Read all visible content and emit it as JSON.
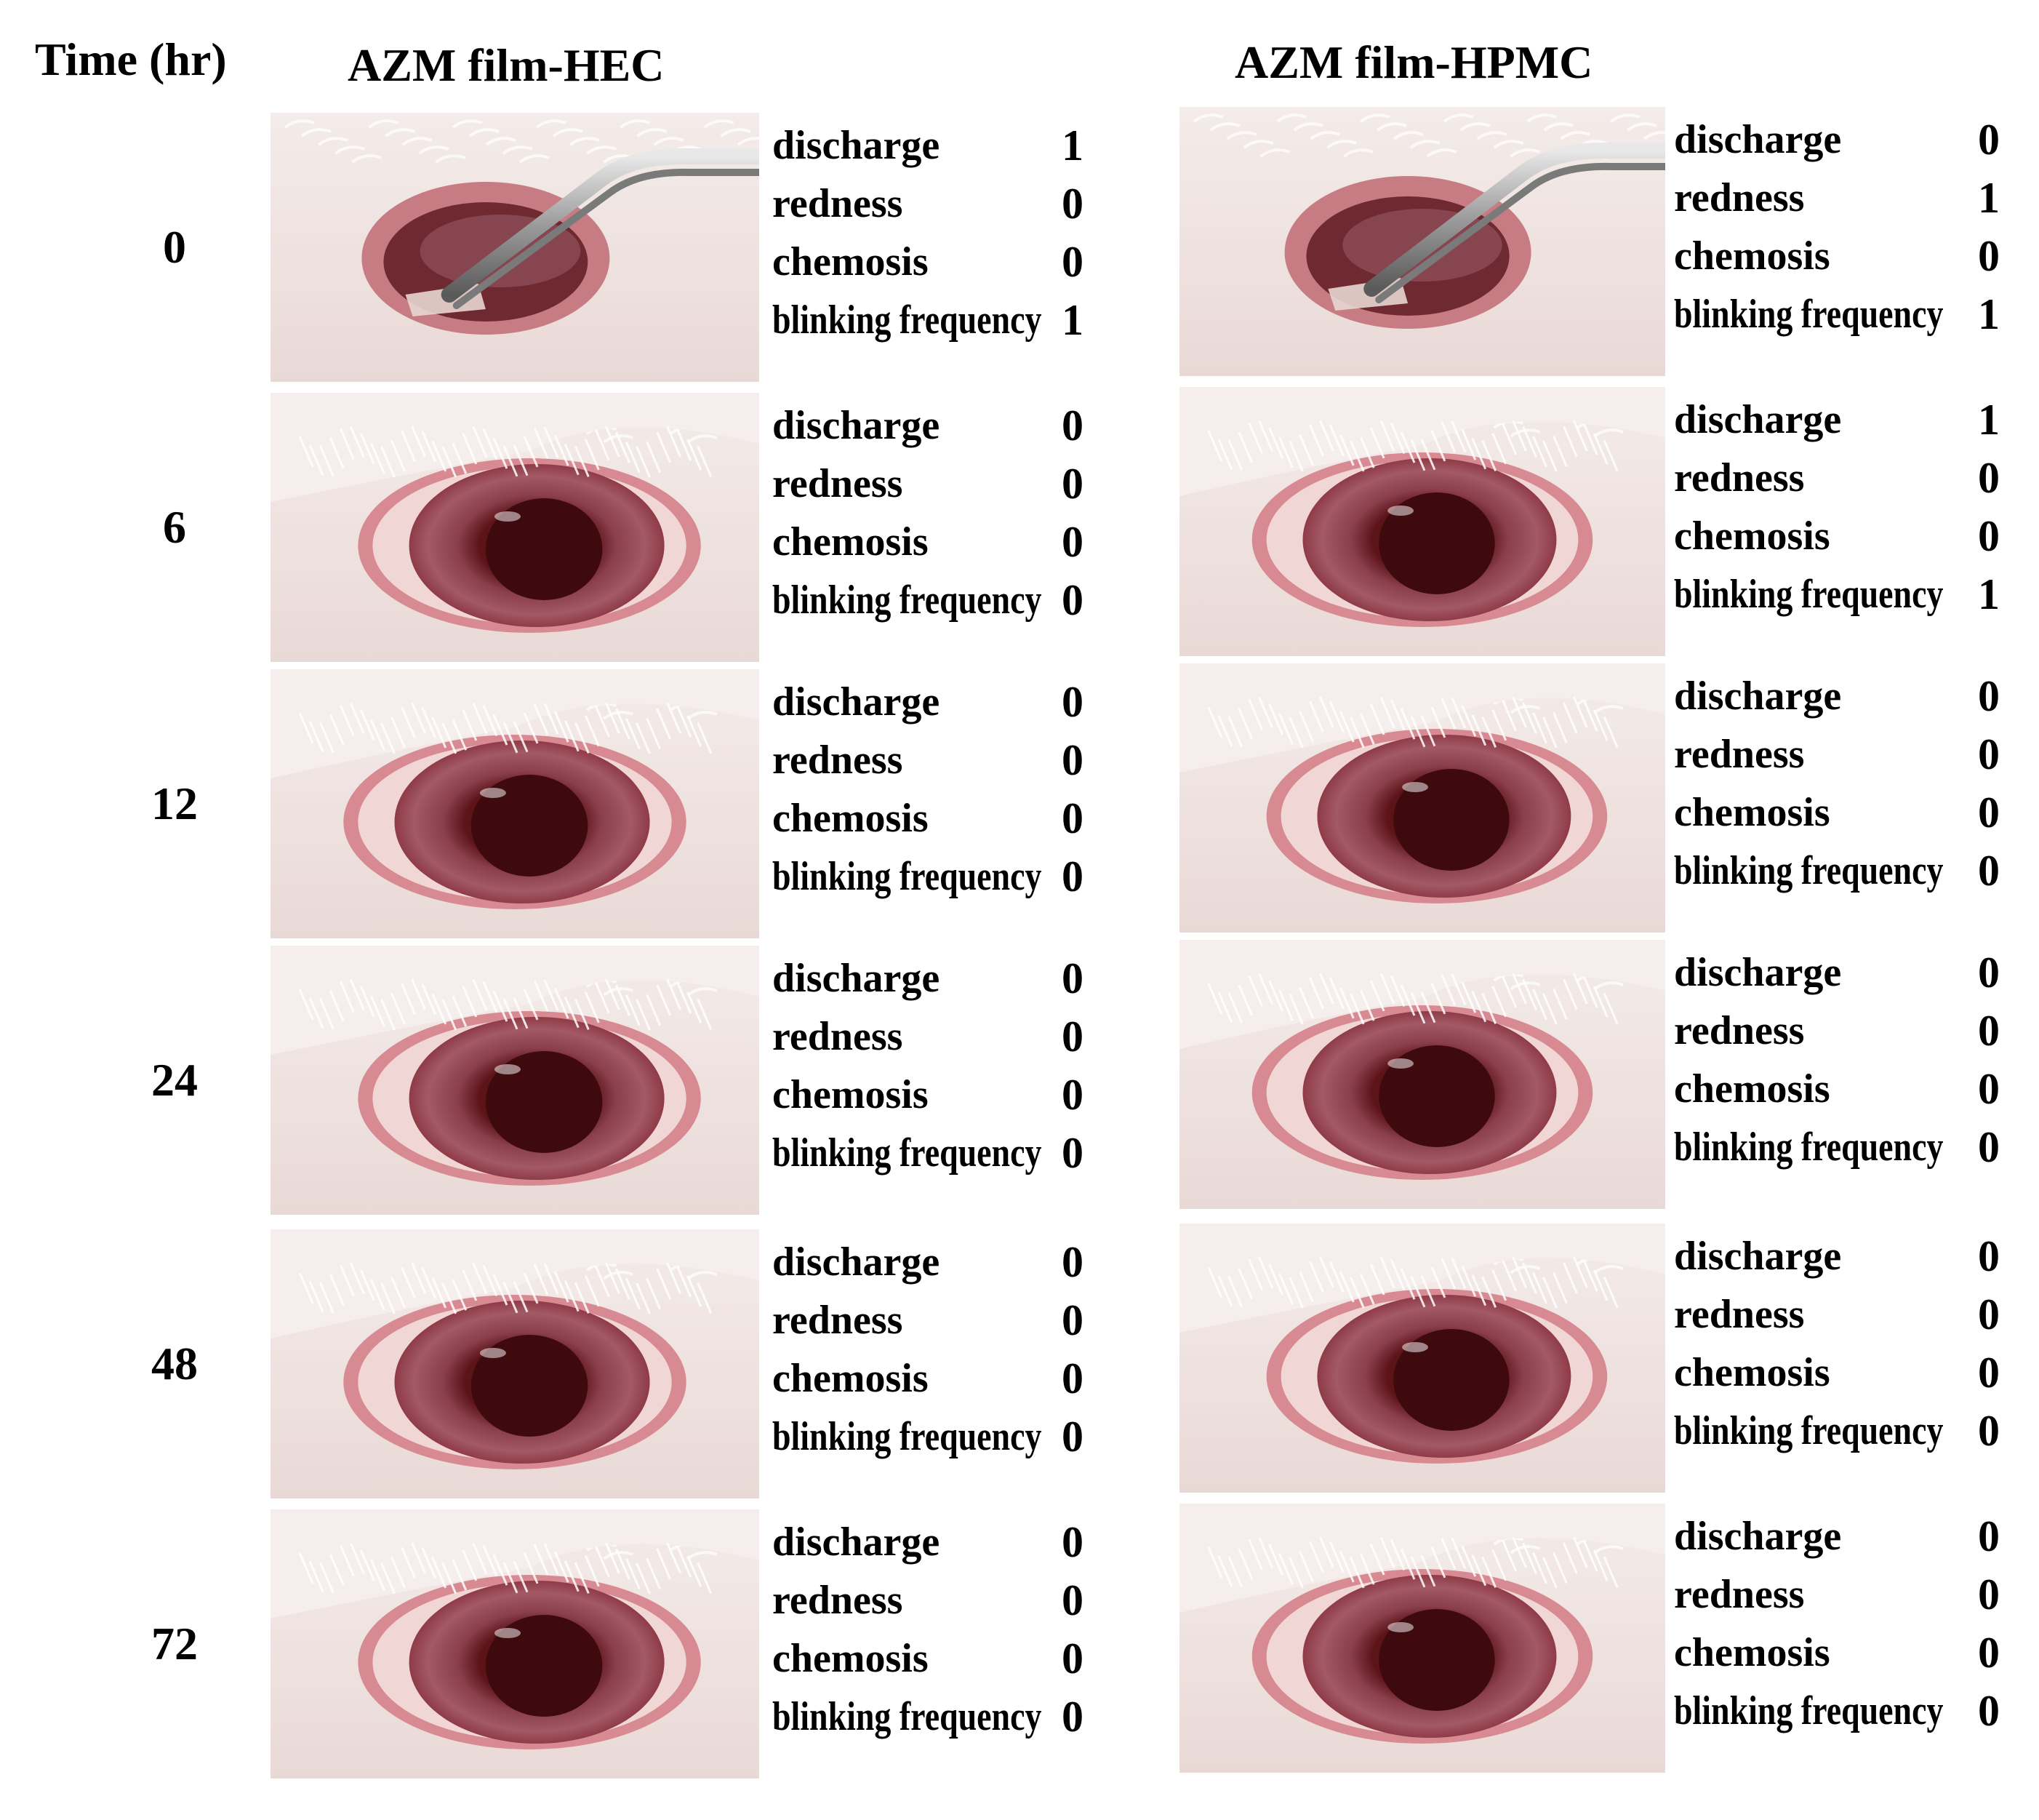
{
  "header": {
    "time_label": "Time (hr)",
    "left_title": "AZM film-HEC",
    "right_title": "AZM film-HPMC"
  },
  "score_labels": {
    "discharge": "discharge",
    "redness": "redness",
    "chemosis": "chemosis",
    "blinking": "blinking frequency"
  },
  "rows": [
    {
      "time": "0",
      "hec": {
        "discharge": "1",
        "redness": "0",
        "chemosis": "0",
        "blinking": "1",
        "forceps": true
      },
      "hpmc": {
        "discharge": "0",
        "redness": "1",
        "chemosis": "0",
        "blinking": "1",
        "forceps": true
      }
    },
    {
      "time": "6",
      "hec": {
        "discharge": "0",
        "redness": "0",
        "chemosis": "0",
        "blinking": "0"
      },
      "hpmc": {
        "discharge": "1",
        "redness": "0",
        "chemosis": "0",
        "blinking": "1"
      }
    },
    {
      "time": "12",
      "hec": {
        "discharge": "0",
        "redness": "0",
        "chemosis": "0",
        "blinking": "0"
      },
      "hpmc": {
        "discharge": "0",
        "redness": "0",
        "chemosis": "0",
        "blinking": "0"
      }
    },
    {
      "time": "24",
      "hec": {
        "discharge": "0",
        "redness": "0",
        "chemosis": "0",
        "blinking": "0"
      },
      "hpmc": {
        "discharge": "0",
        "redness": "0",
        "chemosis": "0",
        "blinking": "0"
      }
    },
    {
      "time": "48",
      "hec": {
        "discharge": "0",
        "redness": "0",
        "chemosis": "0",
        "blinking": "0"
      },
      "hpmc": {
        "discharge": "0",
        "redness": "0",
        "chemosis": "0",
        "blinking": "0"
      }
    },
    {
      "time": "72",
      "hec": {
        "discharge": "0",
        "redness": "0",
        "chemosis": "0",
        "blinking": "0"
      },
      "hpmc": {
        "discharge": "0",
        "redness": "0",
        "chemosis": "0",
        "blinking": "0"
      }
    }
  ]
}
